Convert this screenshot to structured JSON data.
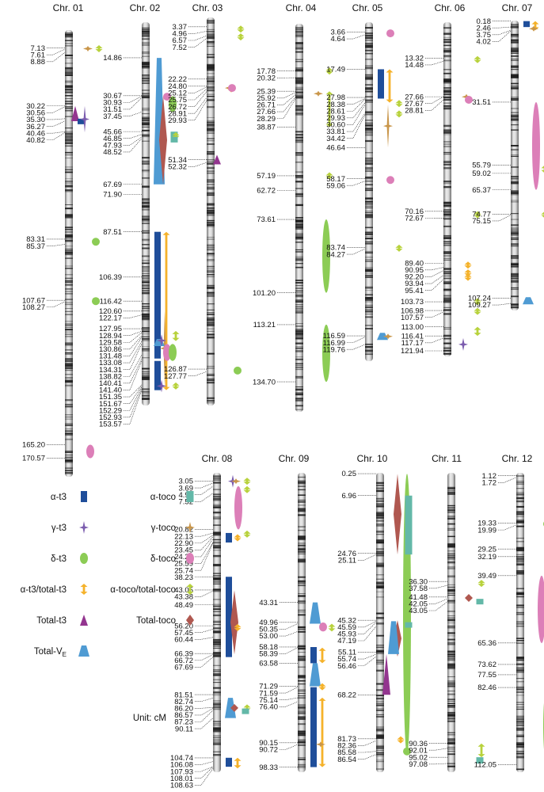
{
  "chart_data": {
    "type": "diagram",
    "colors": {
      "a_t3": "#1f4e9a",
      "g_t3": "#7b5cae",
      "d_t3": "#8ccc55",
      "ratio_t3": "#f5b22a",
      "total_t3": "#93358f",
      "total_ve": "#4f9bd3",
      "a_toco": "#63b8a8",
      "g_toco": "#c9964a",
      "d_toco": "#dc7fb8",
      "ratio_toco": "#b8d23c",
      "total_toco": "#b05850"
    },
    "legend": {
      "items": [
        {
          "key": "a_t3",
          "label": "α-t3",
          "shape": "rect"
        },
        {
          "key": "g_t3",
          "label": "γ-t3",
          "shape": "star"
        },
        {
          "key": "d_t3",
          "label": "δ-t3",
          "shape": "ellipse"
        },
        {
          "key": "ratio_t3",
          "label": "α-t3/total-t3",
          "shape": "arrow"
        },
        {
          "key": "total_t3",
          "label": "Total-t3",
          "shape": "triangle"
        },
        {
          "key": "total_ve",
          "label": "Total-V",
          "sub": "E",
          "shape": "trapezoid"
        },
        {
          "key": "a_toco",
          "label": "α-toco",
          "shape": "rect"
        },
        {
          "key": "g_toco",
          "label": "γ-toco",
          "shape": "star"
        },
        {
          "key": "d_toco",
          "label": "δ-toco",
          "shape": "ellipse"
        },
        {
          "key": "ratio_toco",
          "label": "α-toco/total-toco",
          "shape": "arrow"
        },
        {
          "key": "total_toco",
          "label": "Total-toco",
          "shape": "diamond"
        }
      ],
      "unit": "Unit: cM"
    },
    "chromosomes": [
      {
        "name": "Chr. 01",
        "length": 178,
        "markers": [
          7.13,
          7.61,
          8.88,
          30.22,
          30.56,
          35.3,
          36.27,
          40.46,
          40.82,
          83.31,
          85.37,
          107.67,
          108.27,
          165.2,
          170.57
        ],
        "qtls": [
          {
            "trait": "g_toco",
            "start": 7.2,
            "end": 7.6
          },
          {
            "trait": "ratio_toco",
            "start": 6.6,
            "end": 8.2
          },
          {
            "trait": "total_t3",
            "start": 30.2,
            "end": 36.3
          },
          {
            "trait": "a_t3",
            "start": 35.3,
            "end": 36.3
          },
          {
            "trait": "g_t3",
            "start": 30.2,
            "end": 40.8
          },
          {
            "trait": "d_t3",
            "start": 83.3,
            "end": 85.4
          },
          {
            "trait": "d_t3",
            "start": 107.7,
            "end": 108.3
          },
          {
            "trait": "d_toco",
            "start": 165.2,
            "end": 170.6
          }
        ]
      },
      {
        "name": "Chr. 02",
        "length": 160,
        "markers": [
          14.86,
          30.67,
          30.93,
          31.51,
          37.45,
          45.66,
          46.85,
          47.93,
          48.52,
          67.69,
          71.9,
          87.51,
          106.39,
          116.42,
          120.6,
          122.17,
          127.95,
          128.94,
          129.58,
          130.86,
          131.48,
          133.08,
          134.31,
          138.82,
          140.41,
          141.4,
          151.35,
          151.67,
          152.29,
          152.93,
          153.57
        ],
        "qtls": [
          {
            "trait": "total_ve",
            "start": 14.9,
            "end": 67.7
          },
          {
            "trait": "total_toco",
            "start": 30.7,
            "end": 67.7
          },
          {
            "trait": "d_toco",
            "start": 30.7,
            "end": 31.5
          },
          {
            "trait": "d_t3",
            "start": 30.9,
            "end": 37.5
          },
          {
            "trait": "a_toco",
            "start": 45.7,
            "end": 47.9
          },
          {
            "trait": "ratio_toco",
            "start": 46.9,
            "end": 47.9
          },
          {
            "trait": "a_toco",
            "start": 47.9,
            "end": 48.5
          },
          {
            "trait": "a_t3",
            "start": 87.5,
            "end": 140.4
          },
          {
            "trait": "ratio_t3",
            "start": 87.5,
            "end": 153.6
          },
          {
            "trait": "g_toco",
            "start": 120.6,
            "end": 151.7
          },
          {
            "trait": "ratio_toco",
            "start": 128.9,
            "end": 133.1
          },
          {
            "trait": "total_ve",
            "start": 133.1,
            "end": 134.3
          },
          {
            "trait": "d_toco",
            "start": 134.3,
            "end": 141.4
          },
          {
            "trait": "d_t3",
            "start": 134.3,
            "end": 141.4
          },
          {
            "trait": "g_t3",
            "start": 131.5,
            "end": 134.3
          },
          {
            "trait": "a_t3",
            "start": 141.4,
            "end": 153.6
          },
          {
            "trait": "g_t3",
            "start": 151.4,
            "end": 152.3
          },
          {
            "trait": "ratio_toco",
            "start": 151.4,
            "end": 152.3
          }
        ]
      },
      {
        "name": "Chr. 03",
        "length": 140,
        "markers": [
          3.37,
          4.96,
          6.57,
          7.52,
          22.22,
          24.8,
          25.12,
          25.75,
          26.72,
          28.91,
          29.93,
          51.34,
          52.32,
          126.87,
          127.77
        ],
        "qtls": [
          {
            "trait": "ratio_toco",
            "start": 3.4,
            "end": 5.0
          },
          {
            "trait": "ratio_toco",
            "start": 6.6,
            "end": 7.5
          },
          {
            "trait": "ratio_t3",
            "start": 24.8,
            "end": 26.7
          },
          {
            "trait": "g_toco",
            "start": 25.1,
            "end": 25.8
          },
          {
            "trait": "d_toco",
            "start": 25.1,
            "end": 25.8
          },
          {
            "trait": "total_t3",
            "start": 51.3,
            "end": 51.3
          },
          {
            "trait": "d_t3",
            "start": 127.0,
            "end": 127.8
          }
        ]
      },
      {
        "name": "Chr. 04",
        "length": 146,
        "markers": [
          17.78,
          20.32,
          25.39,
          25.92,
          26.71,
          27.66,
          28.29,
          38.87,
          57.19,
          62.72,
          73.61,
          101.2,
          113.21,
          134.7
        ],
        "qtls": [
          {
            "trait": "ratio_toco",
            "start": 17.8,
            "end": 17.8
          },
          {
            "trait": "g_toco",
            "start": 25.9,
            "end": 26.7
          },
          {
            "trait": "ratio_toco",
            "start": 25.4,
            "end": 38.9
          },
          {
            "trait": "ratio_toco",
            "start": 57.2,
            "end": 57.2
          },
          {
            "trait": "d_t3",
            "start": 73.6,
            "end": 101.2
          },
          {
            "trait": "d_t3",
            "start": 113.2,
            "end": 134.7
          }
        ]
      },
      {
        "name": "Chr. 05",
        "length": 126,
        "markers": [
          3.66,
          4.64,
          17.49,
          27.98,
          28.38,
          28.61,
          29.93,
          30.6,
          33.81,
          34.42,
          46.64,
          58.17,
          59.06,
          83.74,
          84.27,
          116.59,
          116.99,
          119.76
        ],
        "qtls": [
          {
            "trait": "d_toco",
            "start": 3.7,
            "end": 4.6
          },
          {
            "trait": "a_t3",
            "start": 17.5,
            "end": 28.4
          },
          {
            "trait": "ratio_t3",
            "start": 17.5,
            "end": 29.9
          },
          {
            "trait": "ratio_toco",
            "start": 29.9,
            "end": 30.6
          },
          {
            "trait": "g_toco",
            "start": 30.6,
            "end": 46.6
          },
          {
            "trait": "ratio_toco",
            "start": 33.8,
            "end": 34.4
          },
          {
            "trait": "d_toco",
            "start": 58.2,
            "end": 59.1
          },
          {
            "trait": "ratio_toco",
            "start": 83.7,
            "end": 84.3
          },
          {
            "trait": "total_ve",
            "start": 116.6,
            "end": 117.0
          },
          {
            "trait": "g_toco",
            "start": 116.6,
            "end": 117.0
          }
        ]
      },
      {
        "name": "Chr. 06",
        "length": 124,
        "markers": [
          13.32,
          14.48,
          27.66,
          27.67,
          28.81,
          70.16,
          72.67,
          89.4,
          90.95,
          92.2,
          93.94,
          95.41,
          103.73,
          106.98,
          107.57,
          113.0,
          116.41,
          117.17,
          121.94
        ],
        "qtls": [
          {
            "trait": "ratio_toco",
            "start": 13.3,
            "end": 14.5
          },
          {
            "trait": "g_toco",
            "start": 27.7,
            "end": 27.7
          },
          {
            "trait": "d_toco",
            "start": 28.8,
            "end": 28.8
          },
          {
            "trait": "ratio_toco",
            "start": 70.2,
            "end": 72.7
          },
          {
            "trait": "ratio_t3",
            "start": 89.4,
            "end": 90.9
          },
          {
            "trait": "ratio_t3",
            "start": 92.2,
            "end": 93.9
          },
          {
            "trait": "ratio_t3",
            "start": 93.9,
            "end": 95.4
          },
          {
            "trait": "ratio_toco",
            "start": 103.7,
            "end": 103.7
          },
          {
            "trait": "ratio_toco",
            "start": 107.0,
            "end": 107.6
          },
          {
            "trait": "ratio_toco",
            "start": 113.0,
            "end": 116.4
          },
          {
            "trait": "g_t3",
            "start": 117.2,
            "end": 121.9
          }
        ]
      },
      {
        "name": "Chr. 07",
        "length": 112,
        "markers": [
          0.18,
          2.46,
          3.75,
          4.02,
          31.51,
          55.79,
          59.02,
          65.37,
          74.77,
          75.15,
          107.24,
          109.27
        ],
        "qtls": [
          {
            "trait": "a_t3",
            "start": 0.2,
            "end": 2.5
          },
          {
            "trait": "ratio_t3",
            "start": 0.2,
            "end": 3.8
          },
          {
            "trait": "g_toco",
            "start": 2.5,
            "end": 3.8
          },
          {
            "trait": "d_toco",
            "start": 31.5,
            "end": 65.4
          },
          {
            "trait": "ratio_toco",
            "start": 55.8,
            "end": 59.0
          },
          {
            "trait": "ratio_toco",
            "start": 74.8,
            "end": 75.2
          },
          {
            "trait": "total_ve",
            "start": 107.2,
            "end": 109.3
          }
        ]
      },
      {
        "name": "Chr. 08",
        "length": 110,
        "markers": [
          3.05,
          3.69,
          4.94,
          7.52,
          20.82,
          22.13,
          22.9,
          23.45,
          24.2,
          25.59,
          25.74,
          38.23,
          43.05,
          43.38,
          48.49,
          56.2,
          57.45,
          60.44,
          66.39,
          66.72,
          67.69,
          81.51,
          82.74,
          86.2,
          86.57,
          87.23,
          90.11,
          104.74,
          106.08,
          107.93,
          108.01,
          108.63
        ],
        "qtls": [
          {
            "trait": "g_t3",
            "start": 3.1,
            "end": 3.1
          },
          {
            "trait": "g_toco",
            "start": 3.1,
            "end": 3.1
          },
          {
            "trait": "ratio_toco",
            "start": 3.1,
            "end": 3.1
          },
          {
            "trait": "ratio_toco",
            "start": 4.9,
            "end": 7.5
          },
          {
            "trait": "d_toco",
            "start": 4.9,
            "end": 20.8
          },
          {
            "trait": "ratio_toco",
            "start": 22.1,
            "end": 22.9
          },
          {
            "trait": "a_t3",
            "start": 22.1,
            "end": 25.6
          },
          {
            "trait": "ratio_t3",
            "start": 23.5,
            "end": 24.2
          },
          {
            "trait": "a_t3",
            "start": 38.2,
            "end": 67.7
          },
          {
            "trait": "total_toco",
            "start": 43.1,
            "end": 66.7
          },
          {
            "trait": "ratio_t3",
            "start": 56.2,
            "end": 57.5
          },
          {
            "trait": "total_ve",
            "start": 82.7,
            "end": 90.1
          },
          {
            "trait": "total_toco",
            "start": 86.2,
            "end": 86.6
          },
          {
            "trait": "ratio_toco",
            "start": 86.2,
            "end": 86.6
          },
          {
            "trait": "a_toco",
            "start": 86.6,
            "end": 87.2
          },
          {
            "trait": "a_t3",
            "start": 104.7,
            "end": 108.0
          },
          {
            "trait": "ratio_t3",
            "start": 104.7,
            "end": 108.6
          }
        ]
      },
      {
        "name": "Chr. 09",
        "length": 100,
        "markers": [
          43.31,
          49.96,
          50.35,
          53.0,
          58.18,
          58.39,
          63.58,
          71.29,
          71.59,
          75.14,
          76.4,
          90.15,
          90.72,
          98.33
        ],
        "qtls": [
          {
            "trait": "total_ve",
            "start": 43.3,
            "end": 50.4
          },
          {
            "trait": "d_toco",
            "start": 50.0,
            "end": 53.0
          },
          {
            "trait": "ratio_toco",
            "start": 50.4,
            "end": 53.0
          },
          {
            "trait": "a_t3",
            "start": 58.2,
            "end": 63.6
          },
          {
            "trait": "ratio_t3",
            "start": 58.4,
            "end": 63.6
          },
          {
            "trait": "total_ve",
            "start": 63.6,
            "end": 71.3
          },
          {
            "trait": "ratio_t3",
            "start": 71.3,
            "end": 71.6
          },
          {
            "trait": "a_t3",
            "start": 71.6,
            "end": 98.3
          },
          {
            "trait": "ratio_t3",
            "start": 75.1,
            "end": 98.3
          },
          {
            "trait": "g_toco",
            "start": 90.7,
            "end": 90.7
          }
        ]
      },
      {
        "name": "Chr. 10",
        "length": 92,
        "markers": [
          0.25,
          6.96,
          24.76,
          25.11,
          45.32,
          45.59,
          45.93,
          47.19,
          55.11,
          55.74,
          56.46,
          68.22,
          81.73,
          82.36,
          85.58,
          86.54
        ],
        "qtls": [
          {
            "trait": "d_t3",
            "start": 0.3,
            "end": 86.5
          },
          {
            "trait": "total_toco",
            "start": 0.3,
            "end": 25.1
          },
          {
            "trait": "a_toco",
            "start": 7.0,
            "end": 25.1
          },
          {
            "trait": "total_toco",
            "start": 45.3,
            "end": 56.5
          },
          {
            "trait": "total_ve",
            "start": 45.6,
            "end": 55.7
          },
          {
            "trait": "a_toco",
            "start": 45.9,
            "end": 47.2
          },
          {
            "trait": "total_t3",
            "start": 55.7,
            "end": 68.2
          },
          {
            "trait": "ratio_t3",
            "start": 81.7,
            "end": 82.4
          },
          {
            "trait": "d_t3",
            "start": 85.6,
            "end": 85.6
          }
        ]
      },
      {
        "name": "Chr. 11",
        "length": 100,
        "markers": [
          36.3,
          37.58,
          41.48,
          42.05,
          43.05,
          90.36,
          92.01,
          95.02,
          97.08
        ],
        "qtls": [
          {
            "trait": "ratio_toco",
            "start": 36.3,
            "end": 37.6
          },
          {
            "trait": "total_toco",
            "start": 41.5,
            "end": 42.1
          },
          {
            "trait": "a_toco",
            "start": 42.1,
            "end": 43.1
          },
          {
            "trait": "ratio_toco",
            "start": 90.4,
            "end": 95.0
          },
          {
            "trait": "a_toco",
            "start": 95.0,
            "end": 97.1
          }
        ]
      },
      {
        "name": "Chr. 12",
        "length": 115,
        "markers": [
          1.12,
          1.72,
          19.33,
          19.99,
          29.25,
          32.19,
          39.49,
          65.36,
          73.62,
          77.55,
          82.46,
          112.05
        ],
        "qtls": [
          {
            "trait": "ratio_toco",
            "start": 1.1,
            "end": 1.7
          },
          {
            "trait": "d_t3",
            "start": 19.3,
            "end": 20.0
          },
          {
            "trait": "ratio_toco",
            "start": 19.3,
            "end": 20.0
          },
          {
            "trait": "ratio_toco",
            "start": 29.3,
            "end": 32.2
          },
          {
            "trait": "d_toco",
            "start": 39.5,
            "end": 65.4
          },
          {
            "trait": "ratio_toco",
            "start": 73.6,
            "end": 77.6
          },
          {
            "trait": "d_t3",
            "start": 82.5,
            "end": 112.1
          }
        ]
      }
    ]
  }
}
